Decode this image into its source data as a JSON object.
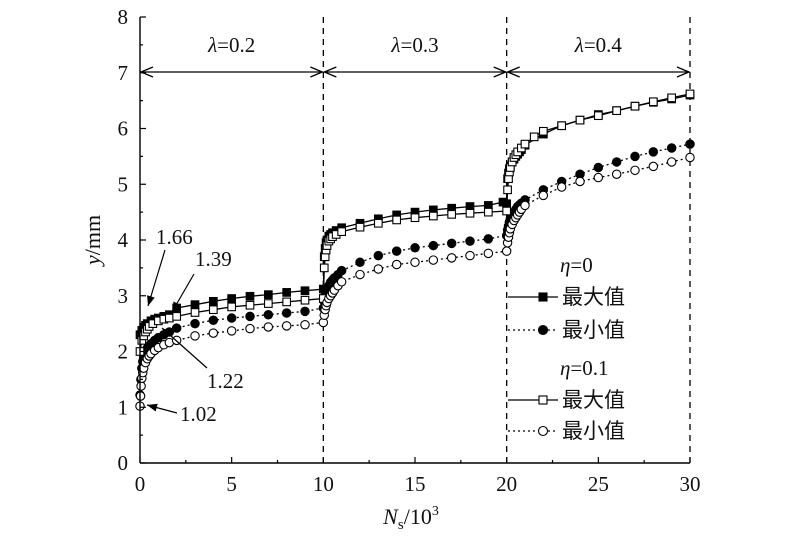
{
  "chart_data": {
    "type": "line",
    "ylabel": "y/mm",
    "xlabel": "Ns/10³",
    "xlabel_parts": {
      "main": "N",
      "sub": "s",
      "rest": "/10",
      "sup": "3"
    },
    "ylabel_parts": {
      "main": "y",
      "rest": "/mm"
    },
    "xlim": [
      0,
      30
    ],
    "ylim": [
      0,
      8
    ],
    "xticks": [
      "0",
      "5",
      "10",
      "15",
      "20",
      "25",
      "30"
    ],
    "yticks": [
      "0",
      "1",
      "2",
      "3",
      "4",
      "5",
      "6",
      "7",
      "8"
    ],
    "grid": false,
    "regions": [
      {
        "label_symbol": "λ",
        "label_value": "=0.2",
        "x_start": 0,
        "x_end": 10
      },
      {
        "label_symbol": "λ",
        "label_value": "=0.3",
        "x_start": 10,
        "x_end": 20
      },
      {
        "label_symbol": "λ",
        "label_value": "=0.4",
        "x_start": 20,
        "x_end": 30
      }
    ],
    "annotations": [
      {
        "text": "1.66",
        "x": 0.05,
        "y": 2.3
      },
      {
        "text": "1.39",
        "x": 0.2,
        "y": 2.15
      },
      {
        "text": "1.22",
        "x": 0.3,
        "y": 2.0
      },
      {
        "text": "1.02",
        "x": 0.0,
        "y": 1.02
      }
    ],
    "legend": {
      "placement": "bottom-right",
      "groups": [
        {
          "symbol": "η",
          "value": "=0",
          "items": [
            {
              "label": "最大值",
              "marker": "square-filled",
              "line": "solid"
            },
            {
              "label": "最小值",
              "marker": "circle-filled",
              "line": "dotted"
            }
          ]
        },
        {
          "symbol": "η",
          "value": "=0.1",
          "items": [
            {
              "label": "最大值",
              "marker": "square-open",
              "line": "solid"
            },
            {
              "label": "最小值",
              "marker": "circle-open",
              "line": "dotted"
            }
          ]
        }
      ]
    },
    "series": [
      {
        "legend_group": 0,
        "legend_index": 0,
        "marker": "square-filled",
        "line": "solid",
        "x": [
          0,
          0.1,
          0.2,
          0.3,
          0.4,
          0.6,
          0.8,
          1.0,
          1.3,
          1.6,
          2,
          3,
          4,
          5,
          6,
          7,
          8,
          9,
          10,
          10.05,
          10.1,
          10.15,
          10.2,
          10.3,
          10.4,
          10.5,
          10.7,
          11,
          12,
          13,
          14,
          15,
          16,
          17,
          18,
          19,
          19.8,
          20,
          20.05,
          20.1,
          20.15,
          20.2,
          20.3,
          20.4,
          20.5,
          20.6,
          20.7,
          20.8,
          21,
          22,
          23,
          24,
          25,
          26,
          27,
          28,
          29,
          30
        ],
        "y": [
          2.3,
          2.38,
          2.43,
          2.47,
          2.5,
          2.55,
          2.58,
          2.6,
          2.63,
          2.66,
          2.78,
          2.84,
          2.9,
          2.95,
          2.99,
          3.02,
          3.06,
          3.09,
          3.12,
          3.7,
          3.85,
          3.95,
          4.0,
          4.07,
          4.1,
          4.13,
          4.17,
          4.22,
          4.3,
          4.38,
          4.45,
          4.5,
          4.54,
          4.57,
          4.6,
          4.62,
          4.68,
          4.65,
          5.1,
          5.2,
          5.28,
          5.33,
          5.4,
          5.45,
          5.5,
          5.54,
          5.58,
          5.62,
          5.7,
          5.9,
          6.05,
          6.15,
          6.25,
          6.32,
          6.4,
          6.47,
          6.53,
          6.6
        ]
      },
      {
        "legend_group": 0,
        "legend_index": 1,
        "marker": "circle-filled",
        "line": "dotted",
        "x": [
          0,
          0.05,
          0.1,
          0.15,
          0.2,
          0.3,
          0.4,
          0.5,
          0.6,
          0.8,
          1.0,
          1.3,
          1.6,
          2,
          3,
          4,
          5,
          6,
          7,
          8,
          9,
          10,
          10.05,
          10.1,
          10.15,
          10.2,
          10.3,
          10.4,
          10.5,
          10.6,
          10.8,
          11,
          12,
          13,
          14,
          15,
          16,
          17,
          18,
          19,
          20,
          20.05,
          20.1,
          20.15,
          20.2,
          20.3,
          20.4,
          20.5,
          20.6,
          20.7,
          20.8,
          21,
          22,
          23,
          24,
          25,
          26,
          27,
          28,
          29,
          30
        ],
        "y": [
          1.22,
          1.5,
          1.7,
          1.82,
          1.9,
          2.0,
          2.06,
          2.1,
          2.14,
          2.2,
          2.25,
          2.3,
          2.35,
          2.42,
          2.5,
          2.56,
          2.6,
          2.63,
          2.66,
          2.69,
          2.72,
          2.78,
          2.9,
          3.0,
          3.06,
          3.1,
          3.18,
          3.24,
          3.28,
          3.32,
          3.38,
          3.45,
          3.6,
          3.72,
          3.8,
          3.86,
          3.9,
          3.94,
          3.98,
          4.02,
          4.08,
          4.18,
          4.25,
          4.32,
          4.38,
          4.45,
          4.5,
          4.55,
          4.6,
          4.63,
          4.66,
          4.72,
          4.9,
          5.05,
          5.18,
          5.3,
          5.4,
          5.5,
          5.58,
          5.65,
          5.72
        ]
      },
      {
        "legend_group": 1,
        "legend_index": 0,
        "marker": "square-open",
        "line": "solid",
        "x": [
          0,
          0.1,
          0.2,
          0.3,
          0.4,
          0.5,
          0.7,
          1.0,
          1.3,
          1.6,
          2,
          3,
          4,
          5,
          6,
          7,
          8,
          9,
          10,
          10.05,
          10.1,
          10.15,
          10.2,
          10.3,
          10.4,
          10.5,
          10.7,
          11,
          12,
          13,
          14,
          15,
          16,
          17,
          18,
          19,
          20,
          20.05,
          20.1,
          20.15,
          20.2,
          20.3,
          20.4,
          20.5,
          20.6,
          20.8,
          21,
          21.5,
          22,
          23,
          24,
          25,
          26,
          27,
          28,
          29,
          30
        ],
        "y": [
          2.0,
          2.2,
          2.28,
          2.35,
          2.4,
          2.45,
          2.5,
          2.55,
          2.58,
          2.6,
          2.63,
          2.7,
          2.75,
          2.8,
          2.83,
          2.86,
          2.89,
          2.92,
          2.95,
          3.5,
          3.7,
          3.82,
          3.9,
          3.98,
          4.02,
          4.06,
          4.1,
          4.15,
          4.23,
          4.3,
          4.36,
          4.4,
          4.43,
          4.46,
          4.48,
          4.5,
          4.52,
          4.9,
          5.1,
          5.22,
          5.3,
          5.4,
          5.48,
          5.53,
          5.58,
          5.65,
          5.72,
          5.85,
          5.95,
          6.05,
          6.15,
          6.23,
          6.32,
          6.4,
          6.48,
          6.55,
          6.62
        ]
      },
      {
        "legend_group": 1,
        "legend_index": 1,
        "marker": "circle-open",
        "line": "dotted",
        "x": [
          0,
          0.03,
          0.06,
          0.1,
          0.15,
          0.2,
          0.3,
          0.4,
          0.5,
          0.6,
          0.8,
          1.0,
          1.3,
          1.6,
          2,
          3,
          4,
          5,
          6,
          7,
          8,
          9,
          10,
          10.05,
          10.1,
          10.15,
          10.2,
          10.3,
          10.4,
          10.5,
          10.6,
          10.8,
          11,
          12,
          13,
          14,
          15,
          16,
          17,
          18,
          19,
          20,
          20.05,
          20.1,
          20.15,
          20.2,
          20.3,
          20.4,
          20.5,
          20.6,
          20.7,
          20.8,
          21,
          22,
          23,
          24,
          25,
          26,
          27,
          28,
          29,
          30
        ],
        "y": [
          1.02,
          1.2,
          1.38,
          1.52,
          1.62,
          1.7,
          1.8,
          1.87,
          1.92,
          1.96,
          2.02,
          2.07,
          2.12,
          2.16,
          2.2,
          2.28,
          2.33,
          2.37,
          2.41,
          2.44,
          2.46,
          2.48,
          2.52,
          2.65,
          2.75,
          2.82,
          2.88,
          2.95,
          3.0,
          3.05,
          3.1,
          3.18,
          3.25,
          3.38,
          3.48,
          3.56,
          3.6,
          3.64,
          3.68,
          3.72,
          3.76,
          3.8,
          3.95,
          4.05,
          4.13,
          4.2,
          4.28,
          4.35,
          4.4,
          4.45,
          4.5,
          4.55,
          4.62,
          4.8,
          4.95,
          5.05,
          5.12,
          5.18,
          5.25,
          5.32,
          5.4,
          5.48
        ]
      }
    ]
  }
}
